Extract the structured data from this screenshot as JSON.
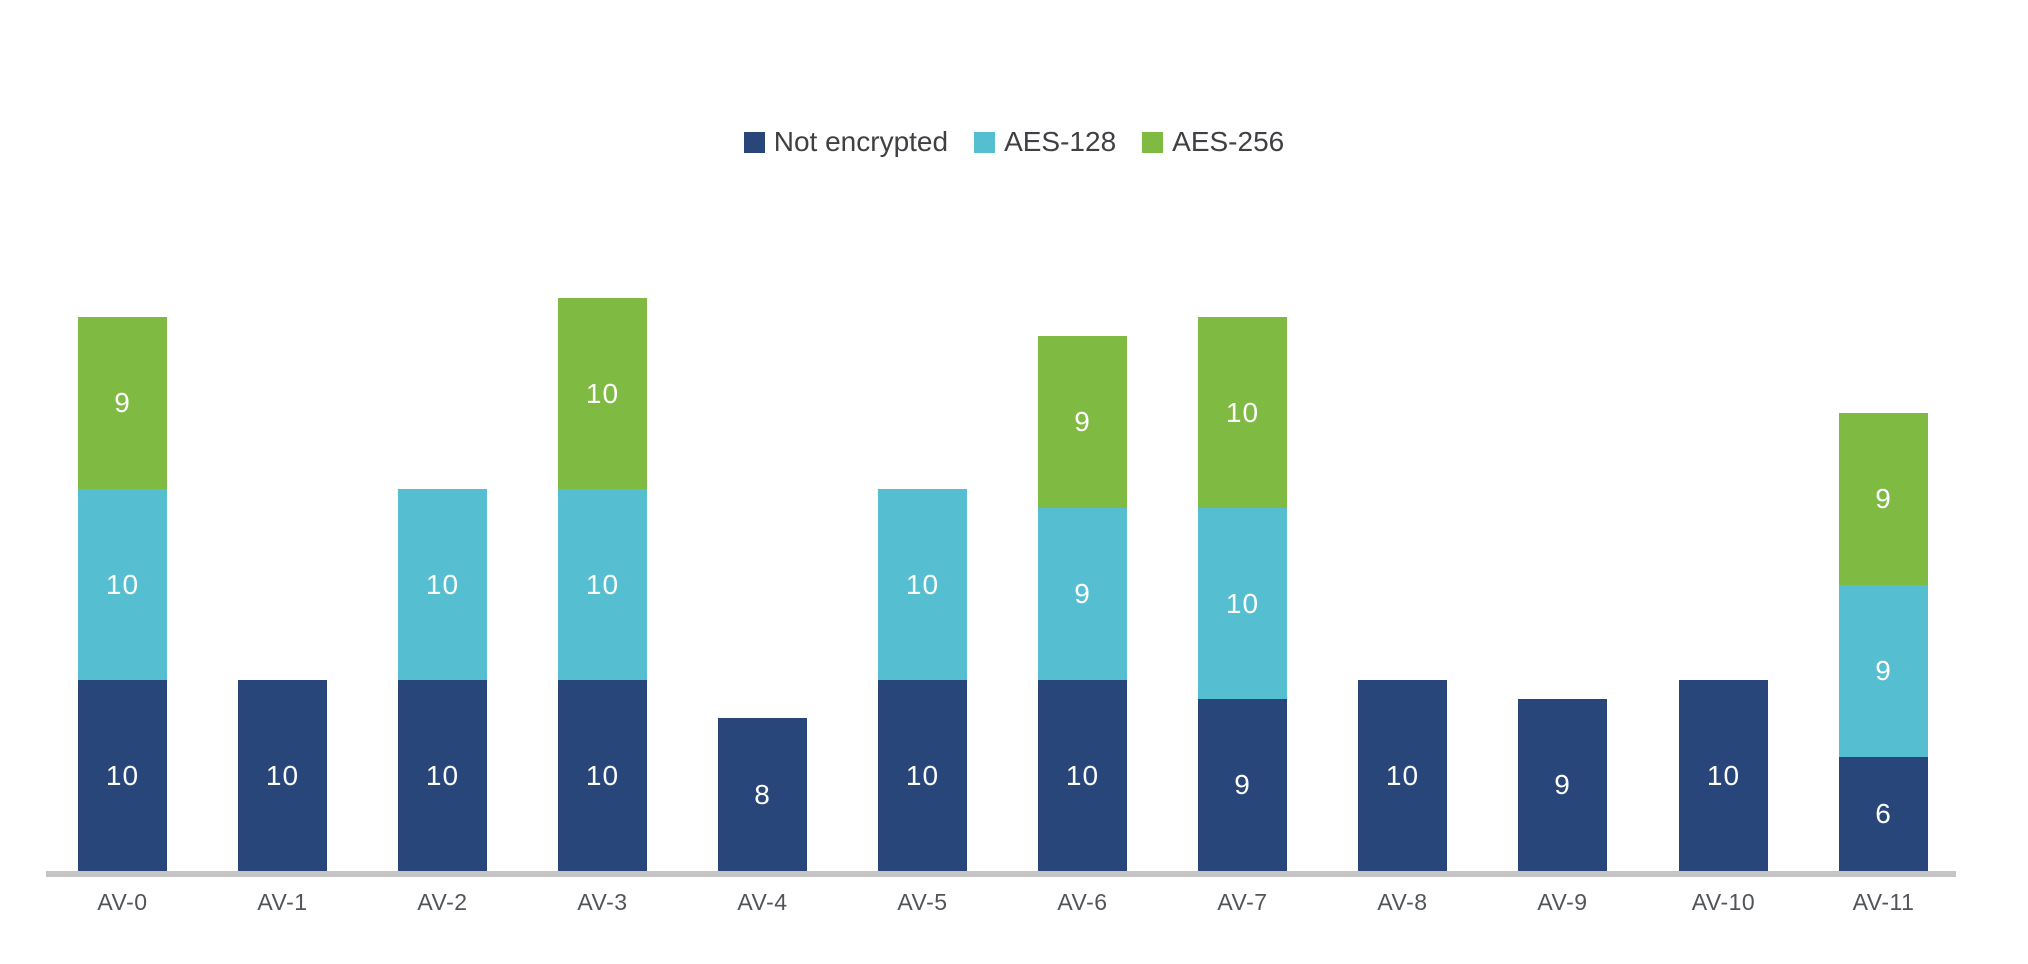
{
  "page": {
    "background": "#ffffff",
    "axis_line_color": "#c5c5c5",
    "axis_label_color": "#515459",
    "legend_text_color": "#3e4043",
    "value_label_color": "#ffffff"
  },
  "chart_data": {
    "type": "bar",
    "stacked": true,
    "title": "",
    "categories": [
      "AV-0",
      "AV-1",
      "AV-2",
      "AV-3",
      "AV-4",
      "AV-5",
      "AV-6",
      "AV-7",
      "AV-8",
      "AV-9",
      "AV-10",
      "AV-11"
    ],
    "series": [
      {
        "name": "Not encrypted",
        "color": "#28467a",
        "values": [
          10,
          10,
          10,
          10,
          8,
          10,
          10,
          9,
          10,
          9,
          10,
          6
        ]
      },
      {
        "name": "AES-128",
        "color": "#55bfd1",
        "values": [
          10,
          0,
          10,
          10,
          0,
          10,
          9,
          10,
          0,
          0,
          0,
          9
        ]
      },
      {
        "name": "AES-256",
        "color": "#7fba42",
        "values": [
          9,
          0,
          0,
          10,
          0,
          0,
          9,
          10,
          0,
          0,
          0,
          9
        ]
      }
    ],
    "totals": [
      29,
      10,
      20,
      30,
      8,
      20,
      28,
      29,
      10,
      9,
      10,
      24
    ],
    "ylim": [
      0,
      30
    ],
    "grid": false,
    "y_axis_visible": false,
    "legend_position": "top-center",
    "value_labels": "inside-center"
  }
}
